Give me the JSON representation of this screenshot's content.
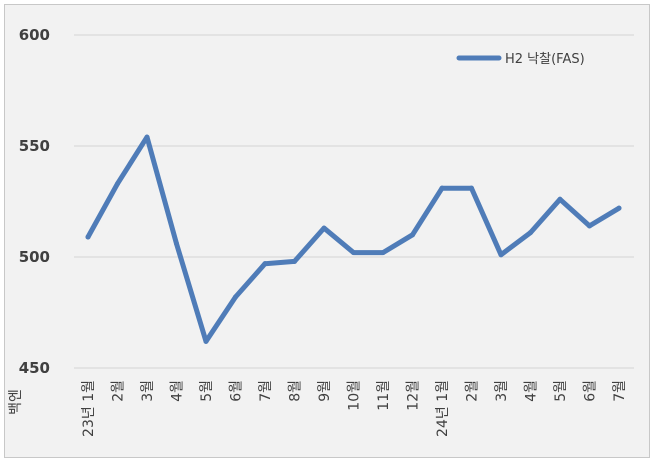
{
  "chart_data": {
    "type": "line",
    "title": "",
    "xlabel": "",
    "ylabel": "백엔",
    "ylim": [
      450,
      600
    ],
    "yticks": [
      450,
      500,
      550,
      600
    ],
    "grid": true,
    "legend_position": "top-right",
    "categories": [
      "23년 1월",
      "2월",
      "3월",
      "4월",
      "5월",
      "6월",
      "7월",
      "8월",
      "9월",
      "10월",
      "11월",
      "12월",
      "24년 1월",
      "2월",
      "3월",
      "4월",
      "5월",
      "6월",
      "7월"
    ],
    "series": [
      {
        "name": "H2 낙찰(FAS)",
        "color": "#4f7cb8",
        "values": [
          509,
          533,
          554,
          506,
          462,
          482,
          497,
          498,
          513,
          502,
          502,
          510,
          531,
          531,
          501,
          511,
          526,
          514,
          522
        ]
      }
    ]
  }
}
